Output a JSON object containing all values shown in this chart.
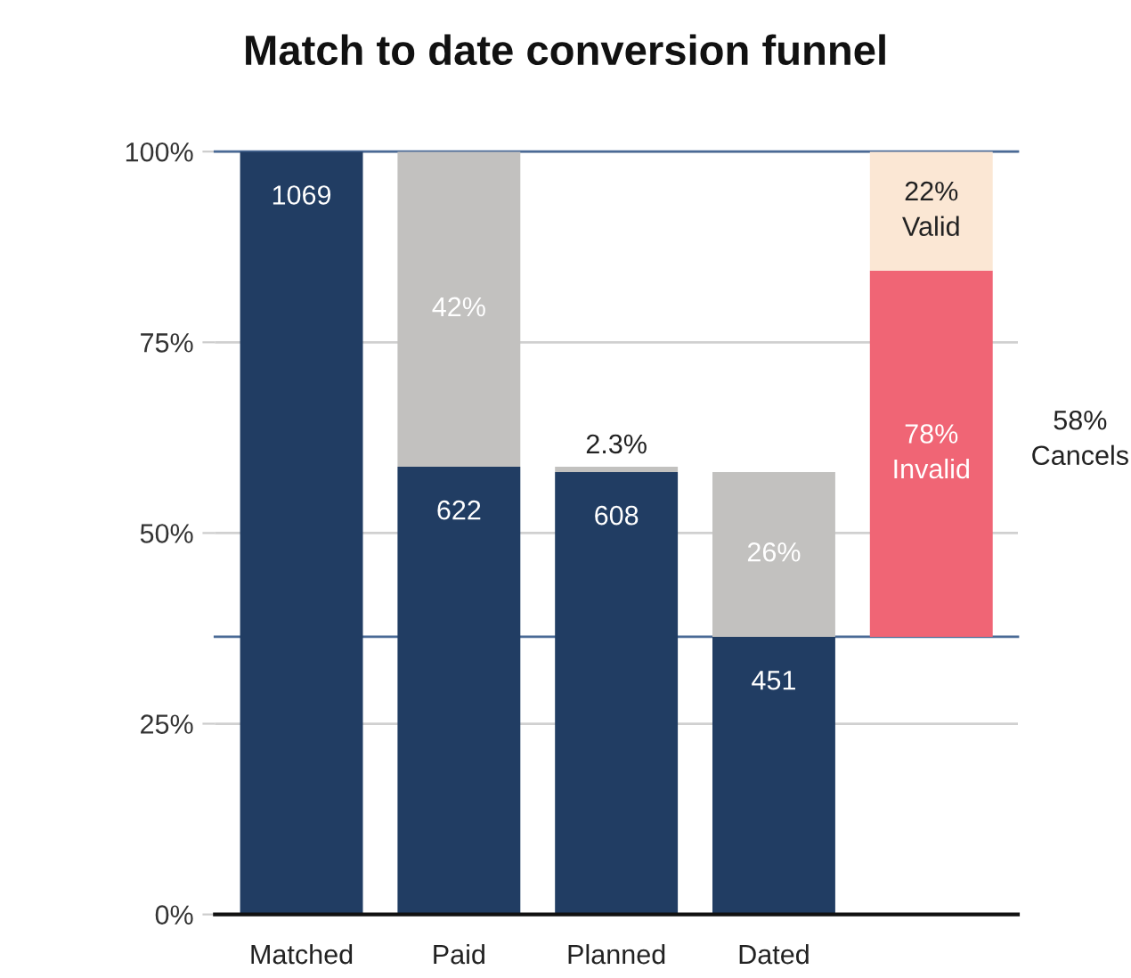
{
  "chart_data": {
    "type": "bar",
    "title": "Match to date conversion funnel",
    "categories": [
      "Matched",
      "Paid",
      "Planned",
      "Dated",
      null
    ],
    "stacked": true,
    "series": [
      {
        "color": "#f06575",
        "base": [
          null,
          null,
          null,
          null,
          36.4
        ],
        "values": [
          null,
          null,
          null,
          null,
          48.0
        ]
      },
      {
        "color": "#fbe7d4",
        "values": [
          null,
          null,
          null,
          null,
          15.6
        ]
      },
      {
        "color": "#213d63",
        "values": [
          100,
          58.7,
          58.0,
          36.4,
          null
        ]
      },
      {
        "color": "#c2c1bf",
        "values": [
          null,
          41.3,
          0.7,
          21.6,
          null
        ]
      }
    ],
    "ylim": [
      0,
      100
    ],
    "yticks": [
      {
        "value": 0,
        "label": "0%"
      },
      {
        "value": 25,
        "label": "25%"
      },
      {
        "value": 50,
        "label": "50%"
      },
      {
        "value": 75,
        "label": "75%"
      },
      {
        "value": 100,
        "label": "100%"
      }
    ],
    "grid": "y",
    "ref_lines": [
      {
        "axis": "y",
        "value": 100,
        "color": "#4a6a96"
      },
      {
        "axis": "y",
        "value": 36.4,
        "color": "#4a6a96"
      }
    ],
    "annotations": [
      "78%\nInvalid",
      "22%\nValid",
      "1069",
      "622",
      "608",
      "451",
      "42%",
      "2.3%",
      "26%",
      "58%\nCancels"
    ]
  }
}
